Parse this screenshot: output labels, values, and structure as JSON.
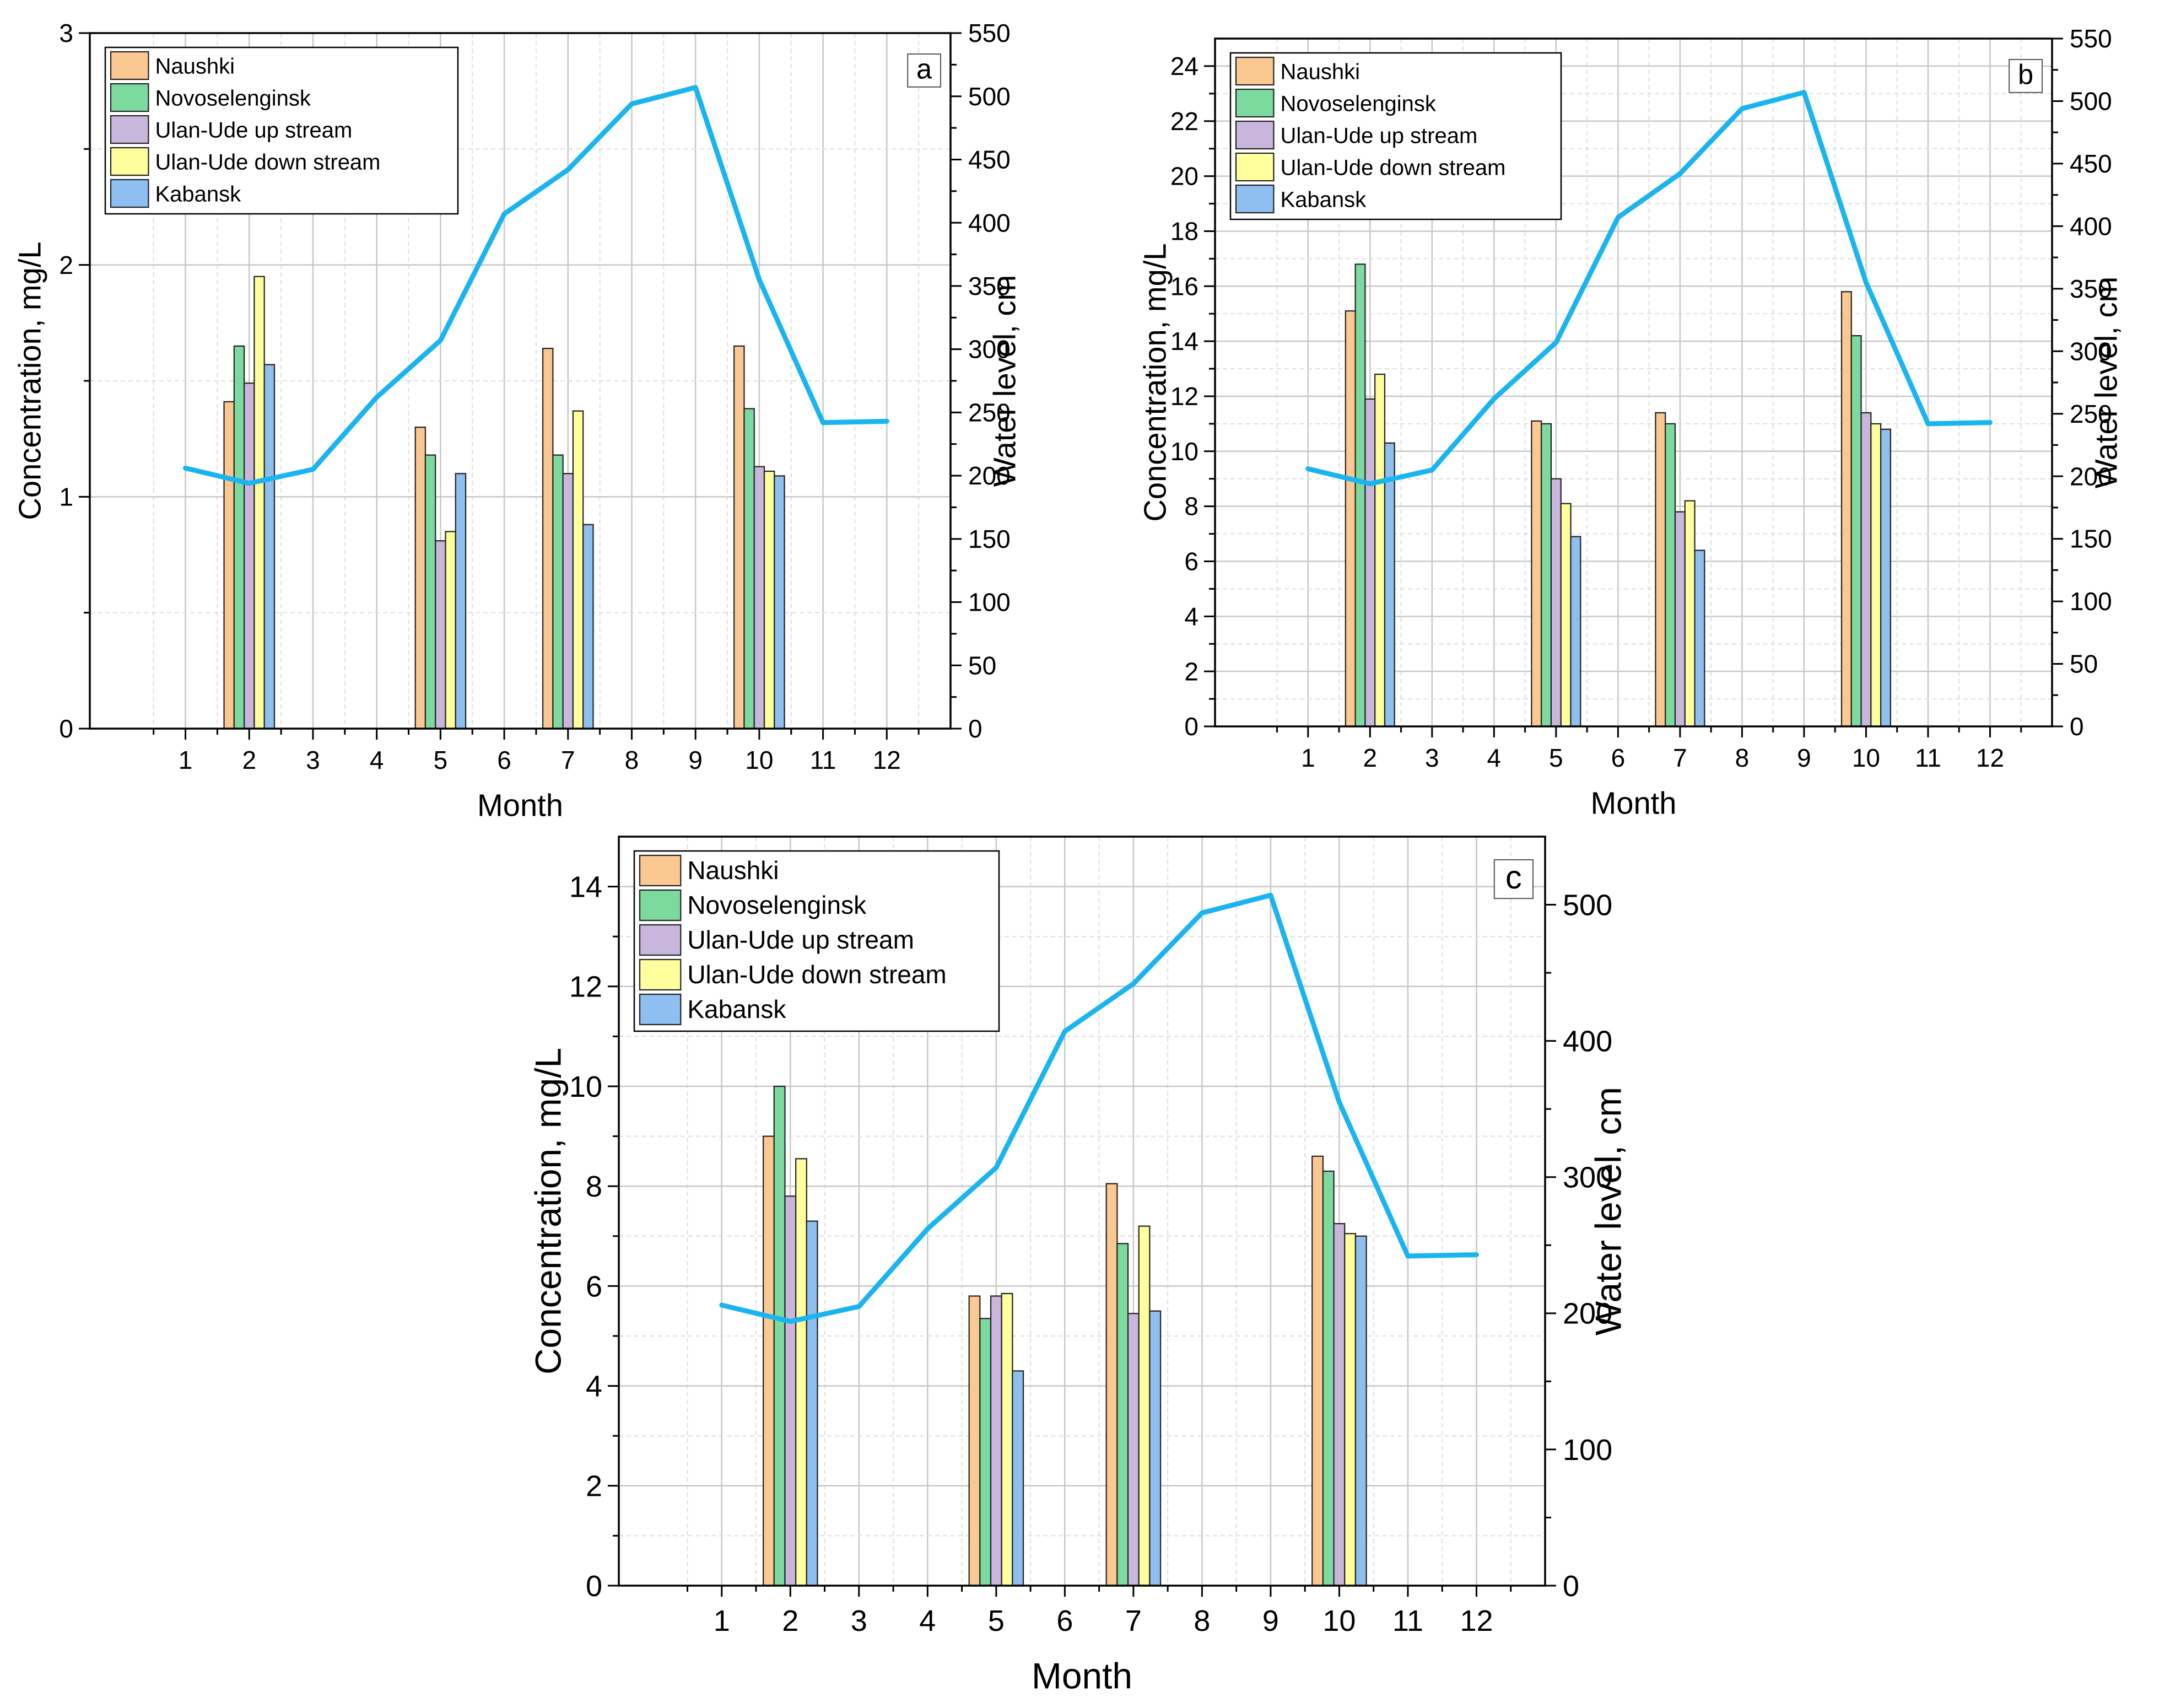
{
  "colors": {
    "series": [
      "#fbc892",
      "#7dda9f",
      "#c9b6dc",
      "#fefe9c",
      "#8fbef0"
    ],
    "line": "#1ab5f0",
    "grid_major": "#c8c8c8",
    "grid_minor": "#dedede"
  },
  "chart_data": [
    {
      "type": "bar",
      "panel_label": "a",
      "xlabel": "Month",
      "ylabel": "Concentration, mg/L",
      "y2label": "Water level, cm",
      "x_ticks": [
        "1",
        "2",
        "3",
        "4",
        "5",
        "6",
        "7",
        "8",
        "9",
        "10",
        "11",
        "12"
      ],
      "ylim": [
        0,
        3
      ],
      "y_ticks": [
        "0",
        "1",
        "2",
        "3"
      ],
      "y2lim": [
        0,
        550
      ],
      "y2_ticks": [
        "0",
        "50",
        "100",
        "150",
        "200",
        "250",
        "300",
        "350",
        "400",
        "450",
        "500",
        "550"
      ],
      "legend_position": "top-left",
      "bar_months": [
        2,
        5,
        7,
        10
      ],
      "series": [
        {
          "name": "Naushki",
          "values": [
            1.41,
            1.3,
            1.64,
            1.65
          ]
        },
        {
          "name": "Novoselenginsk",
          "values": [
            1.65,
            1.18,
            1.18,
            1.38
          ]
        },
        {
          "name": "Ulan-Ude up stream",
          "values": [
            1.49,
            0.81,
            1.1,
            1.13
          ]
        },
        {
          "name": "Ulan-Ude down stream",
          "values": [
            1.95,
            0.85,
            1.37,
            1.11
          ]
        },
        {
          "name": "Kabansk",
          "values": [
            1.57,
            1.1,
            0.88,
            1.09
          ]
        }
      ],
      "water_level": {
        "x": [
          1,
          2,
          3,
          4,
          5,
          6,
          7,
          8,
          9,
          10,
          11,
          12
        ],
        "values": [
          206,
          194,
          205,
          262,
          307,
          407,
          442,
          494,
          507,
          355,
          242,
          243
        ]
      }
    },
    {
      "type": "bar",
      "panel_label": "b",
      "xlabel": "Month",
      "ylabel": "Concentration, mg/L",
      "y2label": "Water level, cm",
      "x_ticks": [
        "1",
        "2",
        "3",
        "4",
        "5",
        "6",
        "7",
        "8",
        "9",
        "10",
        "11",
        "12"
      ],
      "ylim": [
        0,
        25
      ],
      "y_ticks": [
        "0",
        "2",
        "4",
        "6",
        "8",
        "10",
        "12",
        "14",
        "16",
        "18",
        "20",
        "22",
        "24"
      ],
      "y2lim": [
        0,
        550
      ],
      "y2_ticks": [
        "0",
        "50",
        "100",
        "150",
        "200",
        "250",
        "300",
        "350",
        "400",
        "450",
        "500",
        "550"
      ],
      "legend_position": "top-left",
      "bar_months": [
        2,
        5,
        7,
        10
      ],
      "series": [
        {
          "name": "Naushki",
          "values": [
            15.1,
            11.1,
            11.4,
            15.8
          ]
        },
        {
          "name": "Novoselenginsk",
          "values": [
            16.8,
            11.0,
            11.0,
            14.2
          ]
        },
        {
          "name": "Ulan-Ude up stream",
          "values": [
            11.9,
            9.0,
            7.8,
            11.4
          ]
        },
        {
          "name": "Ulan-Ude down stream",
          "values": [
            12.8,
            8.1,
            8.2,
            11.0
          ]
        },
        {
          "name": "Kabansk",
          "values": [
            10.3,
            6.9,
            6.4,
            10.8
          ]
        }
      ],
      "water_level": {
        "x": [
          1,
          2,
          3,
          4,
          5,
          6,
          7,
          8,
          9,
          10,
          11,
          12
        ],
        "values": [
          206,
          194,
          205,
          262,
          307,
          407,
          442,
          494,
          507,
          355,
          242,
          243
        ]
      }
    },
    {
      "type": "bar",
      "panel_label": "c",
      "xlabel": "Month",
      "ylabel": "Concentration, mg/L",
      "y2label": "Water level, cm",
      "x_ticks": [
        "1",
        "2",
        "3",
        "4",
        "5",
        "6",
        "7",
        "8",
        "9",
        "10",
        "11",
        "12"
      ],
      "ylim": [
        0,
        15
      ],
      "y_ticks": [
        "0",
        "2",
        "4",
        "6",
        "8",
        "10",
        "12",
        "14"
      ],
      "y2lim": [
        0,
        550
      ],
      "y2_ticks": [
        "0",
        "100",
        "200",
        "300",
        "400",
        "500"
      ],
      "legend_position": "top-left",
      "bar_months": [
        2,
        5,
        7,
        10
      ],
      "series": [
        {
          "name": "Naushki",
          "values": [
            9.0,
            5.8,
            8.05,
            8.6
          ]
        },
        {
          "name": "Novoselenginsk",
          "values": [
            10.0,
            5.35,
            6.85,
            8.3
          ]
        },
        {
          "name": "Ulan-Ude up stream",
          "values": [
            7.8,
            5.8,
            5.45,
            7.25
          ]
        },
        {
          "name": "Ulan-Ude down stream",
          "values": [
            8.55,
            5.85,
            7.2,
            7.05
          ]
        },
        {
          "name": "Kabansk",
          "values": [
            7.3,
            4.3,
            5.5,
            7.0
          ]
        }
      ],
      "water_level": {
        "x": [
          1,
          2,
          3,
          4,
          5,
          6,
          7,
          8,
          9,
          10,
          11,
          12
        ],
        "values": [
          206,
          194,
          205,
          262,
          307,
          407,
          442,
          494,
          507,
          355,
          242,
          243
        ]
      }
    }
  ]
}
